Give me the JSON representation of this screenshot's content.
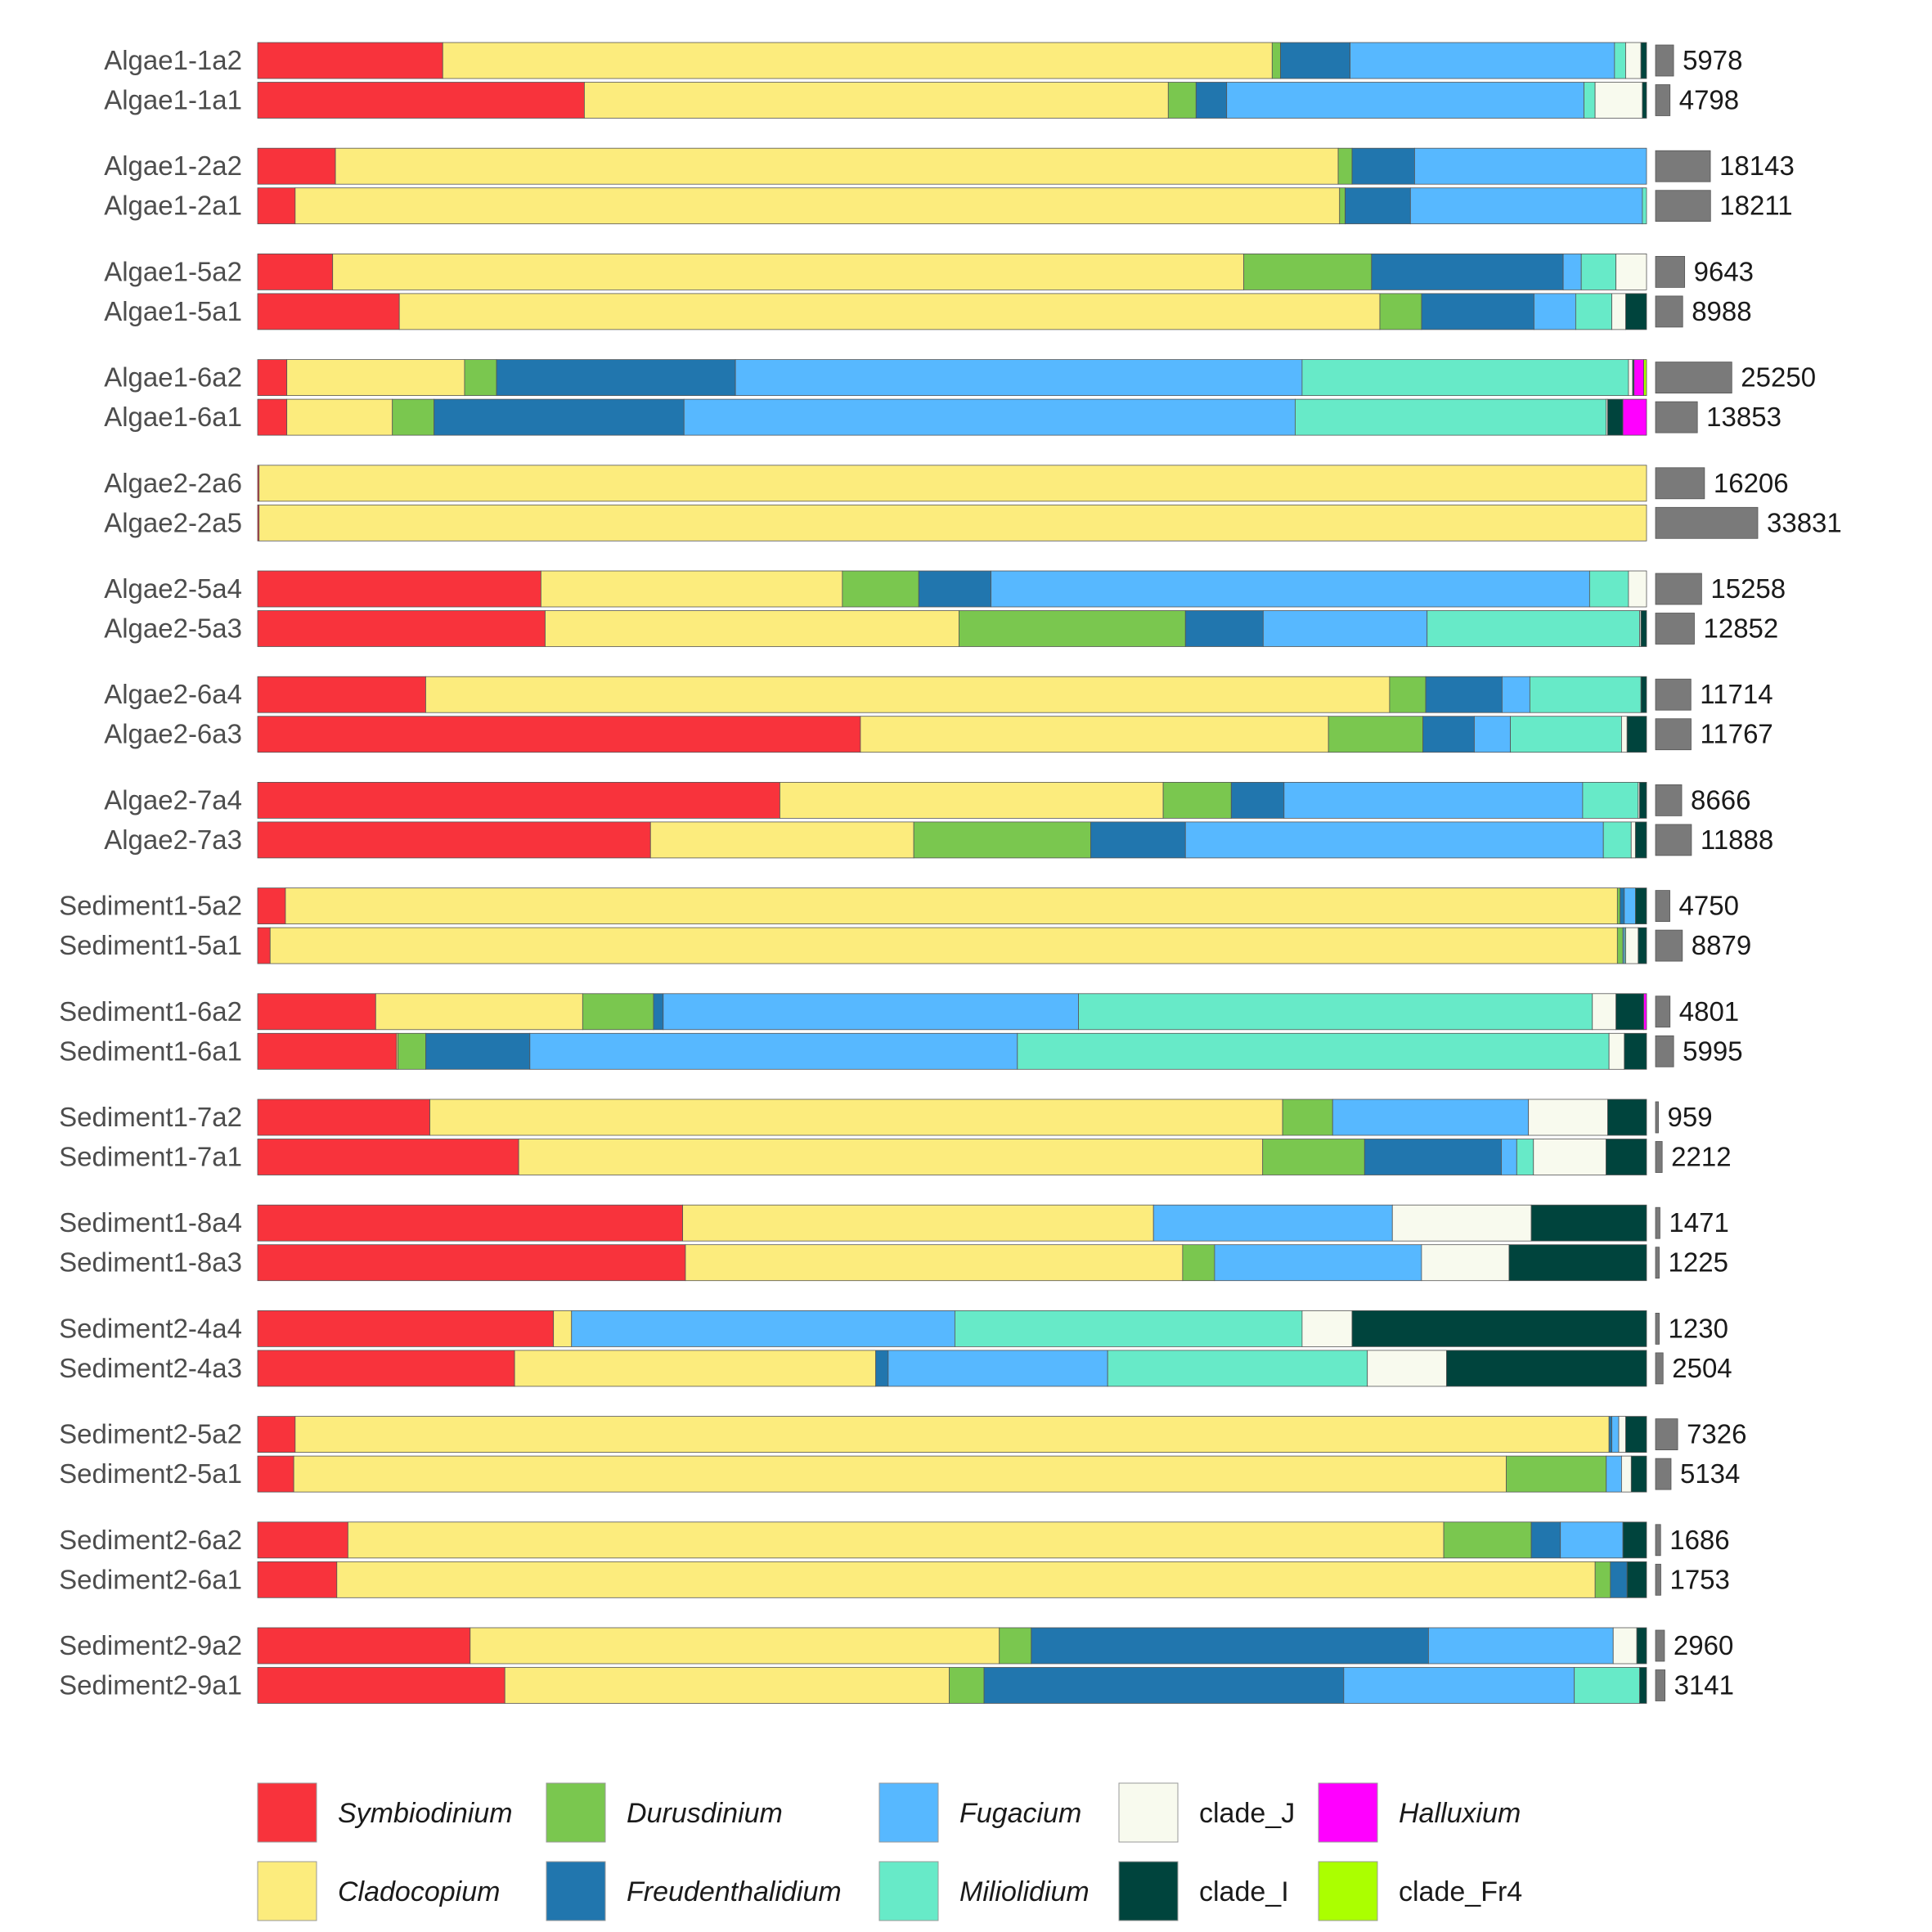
{
  "chart_data": {
    "type": "bar",
    "orientation": "horizontal",
    "stacked": true,
    "normalized": true,
    "xlim": [
      0,
      1
    ],
    "grid": false,
    "legend_position": "bottom",
    "clades": [
      {
        "key": "Symbiodinium",
        "label": "Symbiodinium",
        "color": "#F8333C",
        "italic": true
      },
      {
        "key": "Cladocopium",
        "label": "Cladocopium",
        "color": "#FCEC7D",
        "italic": true
      },
      {
        "key": "Durusdinium",
        "label": "Durusdinium",
        "color": "#7AC74F",
        "italic": true
      },
      {
        "key": "Freudenthalidium",
        "label": "Freudenthalidium",
        "color": "#2176AE",
        "italic": true
      },
      {
        "key": "Fugacium",
        "label": "Fugacium",
        "color": "#57B8FF",
        "italic": true
      },
      {
        "key": "Miliolidium",
        "label": "Miliolidium",
        "color": "#67EAC8",
        "italic": true
      },
      {
        "key": "clade_J",
        "label": "clade_J",
        "color": "#F8FAEE",
        "italic": false
      },
      {
        "key": "clade_I",
        "label": "clade_I",
        "color": "#00443D",
        "italic": false
      },
      {
        "key": "Halluxium",
        "label": "Halluxium",
        "color": "#FF00FF",
        "italic": true
      },
      {
        "key": "clade_Fr4",
        "label": "clade_Fr4",
        "color": "#ABFF00",
        "italic": false
      }
    ],
    "legend_layout": [
      [
        "Symbiodinium",
        "Cladocopium"
      ],
      [
        "Durusdinium",
        "Freudenthalidium"
      ],
      [
        "Fugacium",
        "Miliolidium"
      ],
      [
        "clade_J",
        "clade_I"
      ],
      [
        "Halluxium",
        "clade_Fr4"
      ]
    ],
    "count_axis_max": 33831,
    "samples": [
      {
        "name": "Algae1-1a2",
        "count": 5978,
        "values": {
          "Symbiodinium": 0.133,
          "Cladocopium": 0.596,
          "Durusdinium": 0.006,
          "Freudenthalidium": 0.05,
          "Fugacium": 0.19,
          "Miliolidium": 0.008,
          "clade_J": 0.011,
          "clade_I": 0.004
        }
      },
      {
        "name": "Algae1-1a1",
        "count": 4798,
        "values": {
          "Symbiodinium": 0.235,
          "Cladocopium": 0.42,
          "Durusdinium": 0.02,
          "Freudenthalidium": 0.022,
          "Fugacium": 0.257,
          "Miliolidium": 0.008,
          "clade_J": 0.034,
          "clade_I": 0.003
        }
      },
      {
        "name": "Algae1-2a2",
        "count": 18143,
        "values": {
          "Symbiodinium": 0.056,
          "Cladocopium": 0.722,
          "Durusdinium": 0.01,
          "Freudenthalidium": 0.045,
          "Fugacium": 0.167
        }
      },
      {
        "name": "Algae1-2a1",
        "count": 18211,
        "values": {
          "Symbiodinium": 0.027,
          "Cladocopium": 0.752,
          "Durusdinium": 0.004,
          "Freudenthalidium": 0.047,
          "Fugacium": 0.167,
          "Miliolidium": 0.003
        }
      },
      {
        "name": "Algae1-5a2",
        "count": 9643,
        "values": {
          "Symbiodinium": 0.054,
          "Cladocopium": 0.656,
          "Durusdinium": 0.092,
          "Freudenthalidium": 0.138,
          "Fugacium": 0.013,
          "Miliolidium": 0.025,
          "clade_J": 0.022
        }
      },
      {
        "name": "Algae1-5a1",
        "count": 8988,
        "values": {
          "Symbiodinium": 0.102,
          "Cladocopium": 0.706,
          "Durusdinium": 0.03,
          "Freudenthalidium": 0.081,
          "Fugacium": 0.03,
          "Miliolidium": 0.026,
          "clade_J": 0.01,
          "clade_I": 0.015
        }
      },
      {
        "name": "Algae1-6a2",
        "count": 25250,
        "values": {
          "Symbiodinium": 0.021,
          "Cladocopium": 0.128,
          "Durusdinium": 0.023,
          "Freudenthalidium": 0.172,
          "Fugacium": 0.408,
          "Miliolidium": 0.235,
          "clade_J": 0.003,
          "clade_I": 0.001,
          "Halluxium": 0.007,
          "clade_Fr4": 0.002
        }
      },
      {
        "name": "Algae1-6a1",
        "count": 13853,
        "values": {
          "Symbiodinium": 0.021,
          "Cladocopium": 0.076,
          "Durusdinium": 0.03,
          "Freudenthalidium": 0.18,
          "Fugacium": 0.44,
          "Miliolidium": 0.224,
          "clade_J": 0.001,
          "clade_I": 0.011,
          "Halluxium": 0.017
        }
      },
      {
        "name": "Algae2-2a6",
        "count": 16206,
        "values": {
          "Symbiodinium": 0.001,
          "Cladocopium": 0.999
        }
      },
      {
        "name": "Algae2-2a5",
        "count": 33831,
        "values": {
          "Symbiodinium": 0.001,
          "Cladocopium": 0.999
        }
      },
      {
        "name": "Algae2-5a4",
        "count": 15258,
        "values": {
          "Symbiodinium": 0.204,
          "Cladocopium": 0.217,
          "Durusdinium": 0.055,
          "Freudenthalidium": 0.052,
          "Fugacium": 0.431,
          "Miliolidium": 0.028,
          "clade_J": 0.013
        }
      },
      {
        "name": "Algae2-5a3",
        "count": 12852,
        "values": {
          "Symbiodinium": 0.207,
          "Cladocopium": 0.298,
          "Durusdinium": 0.163,
          "Freudenthalidium": 0.056,
          "Fugacium": 0.118,
          "Miliolidium": 0.153,
          "clade_J": 0.001,
          "clade_I": 0.004
        }
      },
      {
        "name": "Algae2-6a4",
        "count": 11714,
        "values": {
          "Symbiodinium": 0.121,
          "Cladocopium": 0.694,
          "Durusdinium": 0.026,
          "Freudenthalidium": 0.055,
          "Fugacium": 0.02,
          "Miliolidium": 0.08,
          "clade_I": 0.004
        }
      },
      {
        "name": "Algae2-6a3",
        "count": 11767,
        "values": {
          "Symbiodinium": 0.434,
          "Cladocopium": 0.337,
          "Durusdinium": 0.068,
          "Freudenthalidium": 0.037,
          "Fugacium": 0.026,
          "Miliolidium": 0.08,
          "clade_J": 0.004,
          "clade_I": 0.014
        }
      },
      {
        "name": "Algae2-7a4",
        "count": 8666,
        "values": {
          "Symbiodinium": 0.376,
          "Cladocopium": 0.276,
          "Durusdinium": 0.049,
          "Freudenthalidium": 0.038,
          "Fugacium": 0.215,
          "Miliolidium": 0.04,
          "clade_J": 0.001,
          "clade_I": 0.005
        }
      },
      {
        "name": "Algae2-7a3",
        "count": 11888,
        "values": {
          "Symbiodinium": 0.282,
          "Cladocopium": 0.189,
          "Durusdinium": 0.127,
          "Freudenthalidium": 0.068,
          "Fugacium": 0.3,
          "Miliolidium": 0.02,
          "clade_J": 0.003,
          "clade_I": 0.008
        }
      },
      {
        "name": "Sediment1-5a2",
        "count": 4750,
        "values": {
          "Symbiodinium": 0.02,
          "Cladocopium": 0.959,
          "Durusdinium": 0.002,
          "Freudenthalidium": 0.003,
          "Fugacium": 0.008,
          "clade_I": 0.008
        }
      },
      {
        "name": "Sediment1-5a1",
        "count": 8879,
        "values": {
          "Symbiodinium": 0.009,
          "Cladocopium": 0.97,
          "Durusdinium": 0.004,
          "Fugacium": 0.001,
          "Miliolidium": 0.001,
          "clade_J": 0.009,
          "clade_I": 0.006
        }
      },
      {
        "name": "Sediment1-6a2",
        "count": 4801,
        "values": {
          "Symbiodinium": 0.085,
          "Cladocopium": 0.149,
          "Durusdinium": 0.051,
          "Freudenthalidium": 0.007,
          "Fugacium": 0.299,
          "Miliolidium": 0.37,
          "clade_J": 0.017,
          "clade_I": 0.02,
          "Halluxium": 0.002
        }
      },
      {
        "name": "Sediment1-6a1",
        "count": 5995,
        "values": {
          "Symbiodinium": 0.1,
          "Cladocopium": 0.001,
          "Durusdinium": 0.02,
          "Freudenthalidium": 0.075,
          "Fugacium": 0.351,
          "Miliolidium": 0.426,
          "clade_J": 0.011,
          "clade_I": 0.016
        }
      },
      {
        "name": "Sediment1-7a2",
        "count": 959,
        "values": {
          "Symbiodinium": 0.124,
          "Cladocopium": 0.614,
          "Durusdinium": 0.036,
          "Freudenthalidium": 0.0,
          "Fugacium": 0.141,
          "Miliolidium": 0.0,
          "clade_J": 0.057,
          "clade_I": 0.028
        }
      },
      {
        "name": "Sediment1-7a1",
        "count": 2212,
        "values": {
          "Symbiodinium": 0.187,
          "Cladocopium": 0.533,
          "Durusdinium": 0.073,
          "Freudenthalidium": 0.098,
          "Fugacium": 0.011,
          "Miliolidium": 0.012,
          "clade_J": 0.052,
          "clade_I": 0.029
        }
      },
      {
        "name": "Sediment1-8a4",
        "count": 1471,
        "values": {
          "Symbiodinium": 0.306,
          "Cladocopium": 0.339,
          "Fugacium": 0.172,
          "clade_J": 0.1,
          "clade_I": 0.083
        }
      },
      {
        "name": "Sediment1-8a3",
        "count": 1225,
        "values": {
          "Symbiodinium": 0.308,
          "Cladocopium": 0.358,
          "Durusdinium": 0.023,
          "Fugacium": 0.149,
          "clade_J": 0.063,
          "clade_I": 0.099
        }
      },
      {
        "name": "Sediment2-4a4",
        "count": 1230,
        "values": {
          "Symbiodinium": 0.213,
          "Cladocopium": 0.013,
          "Fugacium": 0.276,
          "Miliolidium": 0.25,
          "clade_J": 0.036,
          "clade_I": 0.212
        }
      },
      {
        "name": "Sediment2-4a3",
        "count": 2504,
        "values": {
          "Symbiodinium": 0.185,
          "Cladocopium": 0.26,
          "Freudenthalidium": 0.009,
          "Fugacium": 0.158,
          "Miliolidium": 0.187,
          "clade_J": 0.057,
          "clade_I": 0.144
        }
      },
      {
        "name": "Sediment2-5a2",
        "count": 7326,
        "values": {
          "Symbiodinium": 0.027,
          "Cladocopium": 0.946,
          "Freudenthalidium": 0.002,
          "Fugacium": 0.005,
          "clade_J": 0.005,
          "clade_I": 0.015
        }
      },
      {
        "name": "Sediment2-5a1",
        "count": 5134,
        "values": {
          "Symbiodinium": 0.026,
          "Cladocopium": 0.873,
          "Durusdinium": 0.072,
          "Fugacium": 0.011,
          "clade_J": 0.007,
          "clade_I": 0.011
        }
      },
      {
        "name": "Sediment2-6a2",
        "count": 1686,
        "values": {
          "Symbiodinium": 0.065,
          "Cladocopium": 0.789,
          "Durusdinium": 0.063,
          "Freudenthalidium": 0.021,
          "Fugacium": 0.045,
          "clade_I": 0.017
        }
      },
      {
        "name": "Sediment2-6a1",
        "count": 1753,
        "values": {
          "Symbiodinium": 0.057,
          "Cladocopium": 0.906,
          "Durusdinium": 0.011,
          "Freudenthalidium": 0.012,
          "clade_I": 0.014
        }
      },
      {
        "name": "Sediment2-9a2",
        "count": 2960,
        "values": {
          "Symbiodinium": 0.153,
          "Cladocopium": 0.381,
          "Durusdinium": 0.023,
          "Freudenthalidium": 0.286,
          "Fugacium": 0.133,
          "clade_J": 0.017,
          "clade_I": 0.007
        }
      },
      {
        "name": "Sediment2-9a1",
        "count": 3141,
        "values": {
          "Symbiodinium": 0.178,
          "Cladocopium": 0.32,
          "Durusdinium": 0.025,
          "Freudenthalidium": 0.259,
          "Fugacium": 0.166,
          "Miliolidium": 0.047,
          "clade_I": 0.005
        }
      }
    ]
  }
}
